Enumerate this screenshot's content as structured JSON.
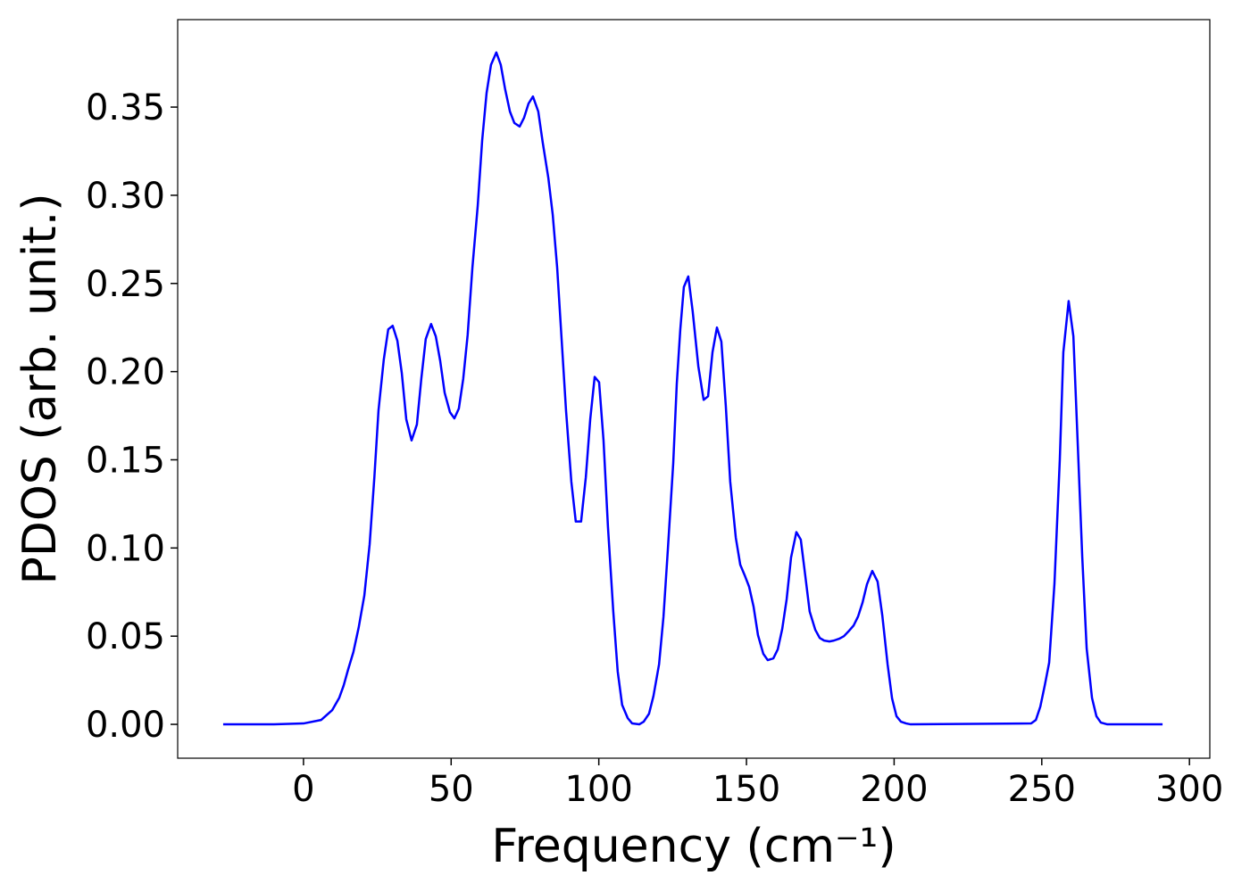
{
  "chart_data": {
    "type": "line",
    "xlabel": "Frequency (cm⁻¹)",
    "ylabel": "PDOS (arb. unit.)",
    "color": "#0000ff",
    "grid": false,
    "xlim": [
      -42.6,
      306.9
    ],
    "ylim": [
      -0.0192,
      0.3996
    ],
    "xticks": [
      0,
      50,
      100,
      150,
      200,
      250,
      300
    ],
    "yticks": [
      {
        "value": 0,
        "label": "0.00"
      },
      0.05,
      {
        "value": 0.1,
        "label": "0.10"
      },
      0.15,
      {
        "value": 0.2,
        "label": "0.20"
      },
      0.25,
      {
        "value": 0.3,
        "label": "0.30"
      },
      0.35
    ],
    "x": [
      -27.2,
      -10,
      0,
      6,
      9.7,
      12.1,
      13.6,
      15.1,
      16.9,
      18.7,
      20.6,
      22.4,
      24,
      25.4,
      27.2,
      28.7,
      30.2,
      31.8,
      33.3,
      34.8,
      36.6,
      38.4,
      39.9,
      41.4,
      43.2,
      44.8,
      46.3,
      47.8,
      49.6,
      51.1,
      52.6,
      54.1,
      55.6,
      57.2,
      59.0,
      60.5,
      62.0,
      63.5,
      65.3,
      66.8,
      68.3,
      69.9,
      71.4,
      73.2,
      74.7,
      76.2,
      77.7,
      79.5,
      81.0,
      82.9,
      84.4,
      85.9,
      87.4,
      88.9,
      90.7,
      92.2,
      94.0,
      95.6,
      97.1,
      98.6,
      100.1,
      101.6,
      103.1,
      104.9,
      106.4,
      107.9,
      109.8,
      111.3,
      113.7,
      115.2,
      117.0,
      118.5,
      120.4,
      121.9,
      123.4,
      125.2,
      126.4,
      127.6,
      128.8,
      130.3,
      131.8,
      133.7,
      135.5,
      137.0,
      138.5,
      140.0,
      141.5,
      143.0,
      144.5,
      146.4,
      147.9,
      149.4,
      150.9,
      152.4,
      153.9,
      155.7,
      157.2,
      159.1,
      160.6,
      162.1,
      163.6,
      165.1,
      166.9,
      168.4,
      169.9,
      171.4,
      173.3,
      174.8,
      176.3,
      178.1,
      179.6,
      181.5,
      183.0,
      184.5,
      186.3,
      187.8,
      189.3,
      190.8,
      192.6,
      194.4,
      196.0,
      197.8,
      199.3,
      200.8,
      202.3,
      204.1,
      205.6,
      246.4,
      248.0,
      249.5,
      251.0,
      252.5,
      254.3,
      256.1,
      257.3,
      259.1,
      260.7,
      262.2,
      263.7,
      265.2,
      267.0,
      268.5,
      270.0,
      272.2,
      290.9
    ],
    "values": [
      0,
      0,
      0.0005,
      0.0025,
      0.008,
      0.015,
      0.022,
      0.031,
      0.041,
      0.055,
      0.073,
      0.102,
      0.14,
      0.178,
      0.207,
      0.224,
      0.226,
      0.2175,
      0.199,
      0.173,
      0.161,
      0.17,
      0.196,
      0.2185,
      0.227,
      0.22,
      0.206,
      0.188,
      0.177,
      0.1735,
      0.179,
      0.196,
      0.221,
      0.259,
      0.294,
      0.331,
      0.358,
      0.374,
      0.381,
      0.374,
      0.36,
      0.3475,
      0.341,
      0.339,
      0.344,
      0.352,
      0.356,
      0.3475,
      0.33,
      0.31,
      0.289,
      0.259,
      0.2185,
      0.178,
      0.1376,
      0.115,
      0.115,
      0.14,
      0.173,
      0.197,
      0.194,
      0.161,
      0.112,
      0.064,
      0.03,
      0.011,
      0.0035,
      0.0005,
      0,
      0.0015,
      0.006,
      0.016,
      0.034,
      0.061,
      0.0996,
      0.148,
      0.193,
      0.224,
      0.248,
      0.254,
      0.234,
      0.203,
      0.184,
      0.186,
      0.211,
      0.225,
      0.217,
      0.1806,
      0.1376,
      0.1057,
      0.0905,
      0.0845,
      0.078,
      0.0668,
      0.0506,
      0.04,
      0.0364,
      0.0374,
      0.0425,
      0.054,
      0.0708,
      0.0946,
      0.109,
      0.1047,
      0.0845,
      0.064,
      0.0536,
      0.049,
      0.0475,
      0.047,
      0.0475,
      0.0486,
      0.05,
      0.0526,
      0.0561,
      0.0612,
      0.069,
      0.0794,
      0.087,
      0.081,
      0.0617,
      0.0339,
      0.0147,
      0.0046,
      0.0015,
      0.0005,
      0,
      0.0005,
      0.0025,
      0.01,
      0.022,
      0.035,
      0.08,
      0.15,
      0.211,
      0.24,
      0.22,
      0.158,
      0.095,
      0.043,
      0.015,
      0.0046,
      0.001,
      0,
      0
    ]
  }
}
